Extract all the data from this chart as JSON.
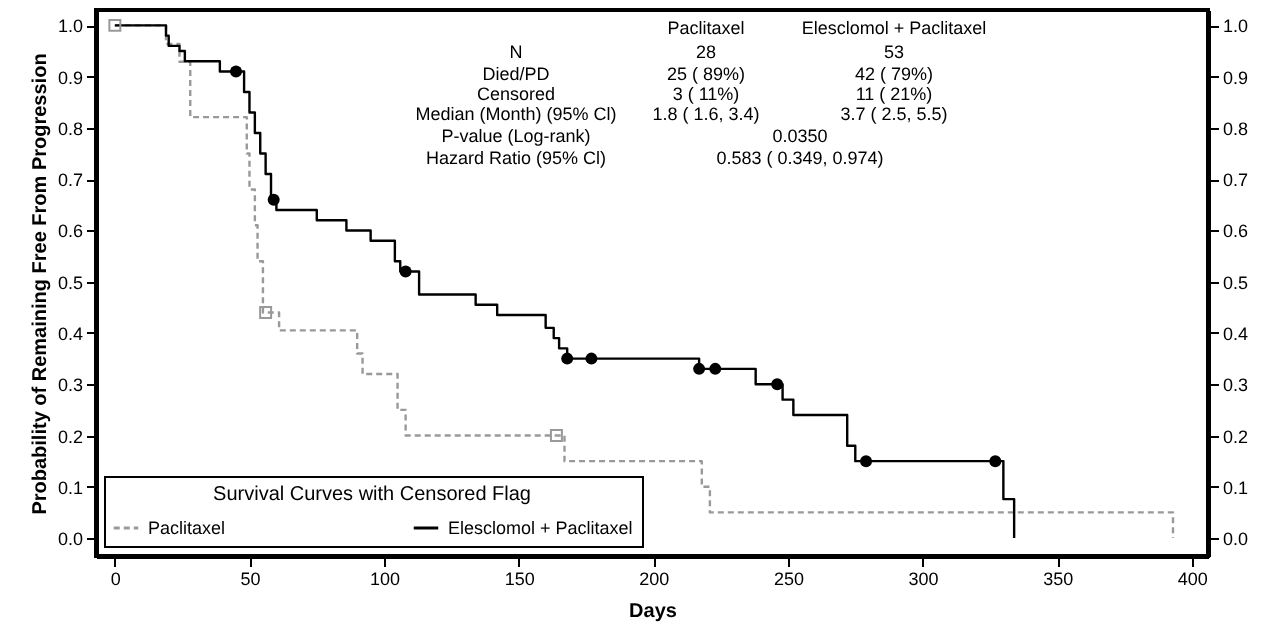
{
  "chart_data": {
    "type": "step",
    "xlabel": "Days",
    "ylabel": "Probability of Remaining Free From Progression",
    "legend_title": "Survival Curves with Censored Flag",
    "legend": "bottom left",
    "xlim": [
      -7,
      406
    ],
    "xticks": [
      0,
      50,
      100,
      150,
      200,
      250,
      300,
      350,
      400
    ],
    "ylim": [
      -0.035,
      1.03
    ],
    "yticks": [
      {
        "value": 0,
        "label": "0.0"
      },
      {
        "value": 0.1,
        "label": "0.1"
      },
      {
        "value": 0.2,
        "label": "0.2"
      },
      {
        "value": 0.3,
        "label": "0.3"
      },
      {
        "value": 0.4,
        "label": "0.4"
      },
      {
        "value": 0.5,
        "label": "0.5"
      },
      {
        "value": 0.6,
        "label": "0.6"
      },
      {
        "value": 0.7,
        "label": "0.7"
      },
      {
        "value": 0.8,
        "label": "0.8"
      },
      {
        "value": 0.9,
        "label": "0.9"
      },
      {
        "value": 1,
        "label": "1.0"
      }
    ],
    "y2lim": [
      -0.035,
      1.03
    ],
    "y2ticks": [
      {
        "value": 0,
        "label": "0.0"
      },
      {
        "value": 0.1,
        "label": "0.1"
      },
      {
        "value": 0.2,
        "label": "0.2"
      },
      {
        "value": 0.3,
        "label": "0.3"
      },
      {
        "value": 0.4,
        "label": "0.4"
      },
      {
        "value": 0.5,
        "label": "0.5"
      },
      {
        "value": 0.6,
        "label": "0.6"
      },
      {
        "value": 0.7,
        "label": "0.7"
      },
      {
        "value": 0.8,
        "label": "0.8"
      },
      {
        "value": 0.9,
        "label": "0.9"
      },
      {
        "value": 1,
        "label": "1.0"
      }
    ],
    "series": [
      {
        "name": "Paclitaxel",
        "type": "step",
        "line_style": "dotted",
        "color": "#999999",
        "x": [
          0,
          19,
          24,
          28,
          49,
          50,
          52,
          53,
          55,
          61,
          90,
          92,
          105,
          108,
          167,
          218,
          221,
          393
        ],
        "values": [
          1.0,
          0.964,
          0.929,
          0.821,
          0.75,
          0.68,
          0.61,
          0.54,
          0.44,
          0.405,
          0.36,
          0.32,
          0.25,
          0.2,
          0.15,
          0.1,
          0.05,
          0.0
        ]
      },
      {
        "name": "Elesclomol + Paclitaxel",
        "type": "step",
        "line_style": "solid",
        "color": "#000000",
        "x": [
          0,
          19,
          20,
          24,
          26,
          39,
          48,
          50,
          52,
          54,
          56,
          58,
          60,
          75,
          86,
          95,
          104,
          106,
          113,
          134,
          142,
          160,
          163,
          165,
          168,
          217,
          238,
          248,
          252,
          272,
          275,
          330,
          334
        ],
        "values": [
          1.0,
          0.98,
          0.96,
          0.95,
          0.93,
          0.91,
          0.87,
          0.83,
          0.79,
          0.75,
          0.71,
          0.66,
          0.64,
          0.62,
          0.6,
          0.58,
          0.54,
          0.52,
          0.475,
          0.455,
          0.435,
          0.41,
          0.39,
          0.37,
          0.35,
          0.33,
          0.3,
          0.27,
          0.24,
          0.18,
          0.15,
          0.076,
          0.0
        ]
      },
      {
        "type": "scatter",
        "marker": "square",
        "color": "#999999",
        "x": [
          0,
          56,
          164
        ],
        "values": [
          1.0,
          0.44,
          0.2
        ]
      },
      {
        "type": "scatter",
        "marker": "circle",
        "color": "#000000",
        "x": [
          45,
          59,
          108,
          168,
          177,
          217,
          223,
          246,
          279,
          327
        ],
        "values": [
          0.91,
          0.66,
          0.52,
          0.35,
          0.35,
          0.33,
          0.33,
          0.3,
          0.15,
          0.15
        ]
      }
    ],
    "annotations": [
      "Paclitaxel",
      "Elesclomol + Paclitaxel",
      "N",
      "28",
      "53",
      "Died/PD",
      "25 ( 89%)",
      "42 ( 79%)",
      "Censored",
      "3 ( 11%)",
      "11 ( 21%)",
      "Median (Month) (95% Cl)",
      "1.8 ( 1.6, 3.4)",
      "3.7 ( 2.5, 5.5)",
      "P-value (Log-rank)",
      "0.0350",
      "Hazard Ratio (95% Cl)",
      "0.583 ( 0.349, 0.974)"
    ]
  }
}
